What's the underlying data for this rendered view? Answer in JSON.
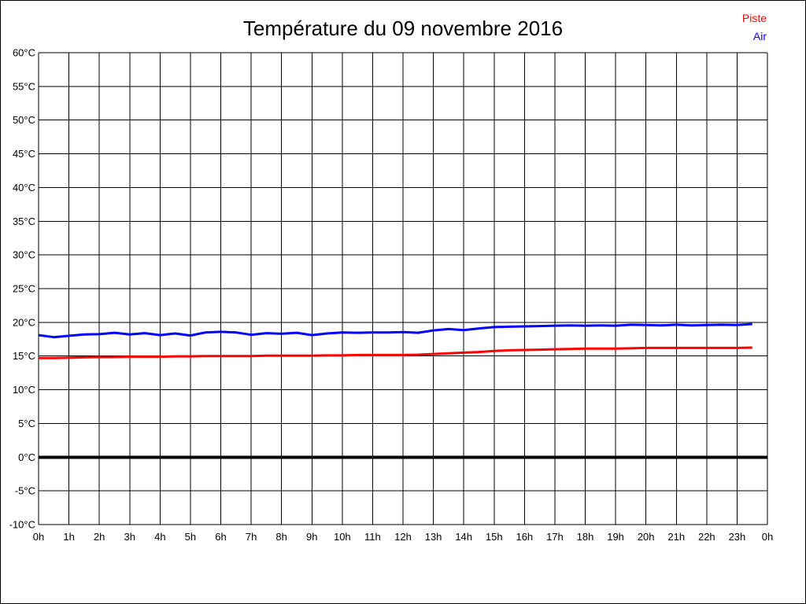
{
  "chart_data": {
    "type": "line",
    "title": "Température du 09 novembre 2016",
    "xlabel": "",
    "ylabel": "",
    "xlim": [
      0,
      24
    ],
    "ylim": [
      -10,
      60
    ],
    "grid": true,
    "legend_position": "top-right",
    "colors": {
      "grid": "#000000",
      "axis_text": "#000000",
      "zero_line": "#000000",
      "background": "#ffffff",
      "piste": "#ff0000",
      "air": "#0000ff"
    },
    "zero_line": {
      "value": 0,
      "width": 4
    },
    "y_ticks": [
      {
        "value": 60,
        "label": "60°C"
      },
      {
        "value": 55,
        "label": "55°C"
      },
      {
        "value": 50,
        "label": "50°C"
      },
      {
        "value": 45,
        "label": "45°C"
      },
      {
        "value": 40,
        "label": "40°C"
      },
      {
        "value": 35,
        "label": "35°C"
      },
      {
        "value": 30,
        "label": "30°C"
      },
      {
        "value": 25,
        "label": "25°C"
      },
      {
        "value": 20,
        "label": "20°C"
      },
      {
        "value": 15,
        "label": "15°C"
      },
      {
        "value": 10,
        "label": "10°C"
      },
      {
        "value": 5,
        "label": "5°C"
      },
      {
        "value": 0,
        "label": "0°C"
      },
      {
        "value": -5,
        "label": "-5°C"
      },
      {
        "value": -10,
        "label": "-10°C"
      }
    ],
    "x_ticks": [
      {
        "value": 0,
        "label": "0h"
      },
      {
        "value": 1,
        "label": "1h"
      },
      {
        "value": 2,
        "label": "2h"
      },
      {
        "value": 3,
        "label": "3h"
      },
      {
        "value": 4,
        "label": "4h"
      },
      {
        "value": 5,
        "label": "5h"
      },
      {
        "value": 6,
        "label": "6h"
      },
      {
        "value": 7,
        "label": "7h"
      },
      {
        "value": 8,
        "label": "8h"
      },
      {
        "value": 9,
        "label": "9h"
      },
      {
        "value": 10,
        "label": "10h"
      },
      {
        "value": 11,
        "label": "11h"
      },
      {
        "value": 12,
        "label": "12h"
      },
      {
        "value": 13,
        "label": "13h"
      },
      {
        "value": 14,
        "label": "14h"
      },
      {
        "value": 15,
        "label": "15h"
      },
      {
        "value": 16,
        "label": "16h"
      },
      {
        "value": 17,
        "label": "17h"
      },
      {
        "value": 18,
        "label": "18h"
      },
      {
        "value": 19,
        "label": "19h"
      },
      {
        "value": 20,
        "label": "20h"
      },
      {
        "value": 21,
        "label": "21h"
      },
      {
        "value": 22,
        "label": "22h"
      },
      {
        "value": 23,
        "label": "23h"
      },
      {
        "value": 24,
        "label": "0h"
      }
    ],
    "x": [
      0,
      0.5,
      1,
      1.5,
      2,
      2.5,
      3,
      3.5,
      4,
      4.5,
      5,
      5.5,
      6,
      6.5,
      7,
      7.5,
      8,
      8.5,
      9,
      9.5,
      10,
      10.5,
      11,
      11.5,
      12,
      12.5,
      13,
      13.5,
      14,
      14.5,
      15,
      15.5,
      16,
      16.5,
      17,
      17.5,
      18,
      18.5,
      19,
      19.5,
      20,
      20.5,
      21,
      21.5,
      22,
      22.5,
      23,
      23.5
    ],
    "series": [
      {
        "name": "Piste",
        "color": "#ff0000",
        "values": [
          14.7,
          14.7,
          14.75,
          14.8,
          14.85,
          14.85,
          14.9,
          14.9,
          14.9,
          14.95,
          14.95,
          15.0,
          15.0,
          15.0,
          15.0,
          15.05,
          15.05,
          15.05,
          15.05,
          15.1,
          15.1,
          15.15,
          15.15,
          15.15,
          15.15,
          15.2,
          15.3,
          15.4,
          15.5,
          15.6,
          15.75,
          15.85,
          15.9,
          15.95,
          16.0,
          16.05,
          16.1,
          16.1,
          16.1,
          16.15,
          16.2,
          16.2,
          16.2,
          16.2,
          16.2,
          16.2,
          16.2,
          16.25
        ]
      },
      {
        "name": "Air",
        "color": "#0000ff",
        "values": [
          18.1,
          17.8,
          18.0,
          18.2,
          18.25,
          18.45,
          18.2,
          18.4,
          18.1,
          18.35,
          18.05,
          18.5,
          18.6,
          18.5,
          18.15,
          18.4,
          18.3,
          18.45,
          18.1,
          18.35,
          18.5,
          18.45,
          18.5,
          18.5,
          18.55,
          18.45,
          18.8,
          19.0,
          18.85,
          19.1,
          19.3,
          19.35,
          19.4,
          19.45,
          19.5,
          19.55,
          19.5,
          19.55,
          19.5,
          19.65,
          19.6,
          19.55,
          19.65,
          19.55,
          19.6,
          19.65,
          19.6,
          19.75
        ]
      }
    ]
  }
}
